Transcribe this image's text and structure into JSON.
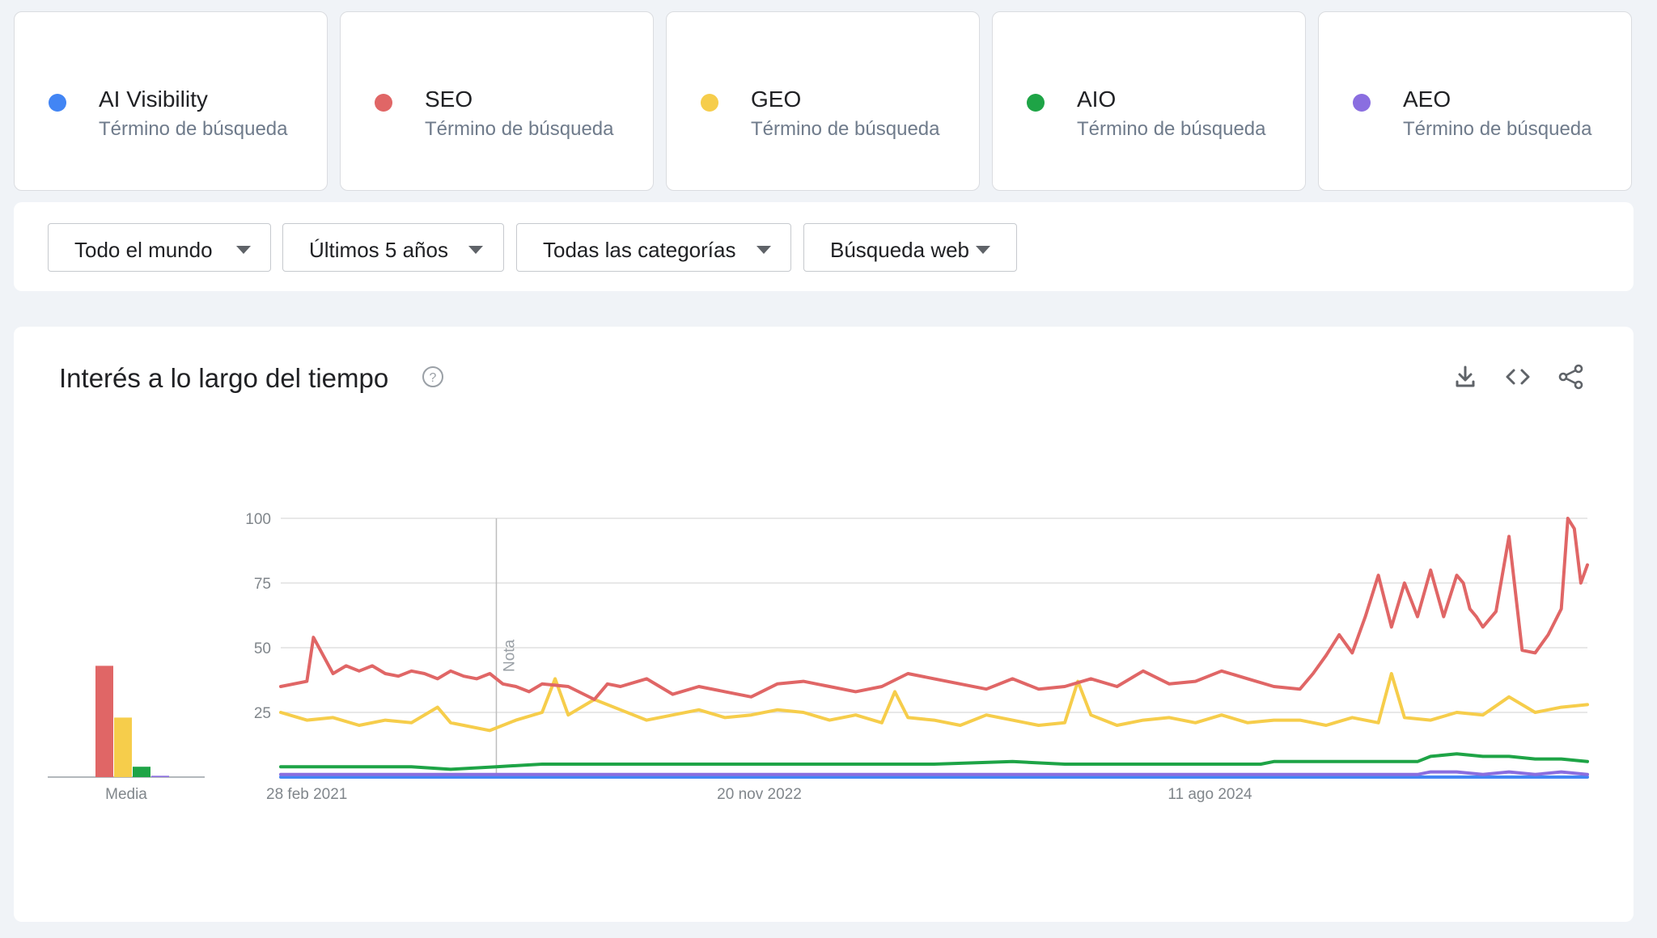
{
  "terms": [
    {
      "name": "AI Visibility",
      "type": "Término de búsqueda",
      "color": "#4285f4"
    },
    {
      "name": "SEO",
      "type": "Término de búsqueda",
      "color": "#e06666"
    },
    {
      "name": "GEO",
      "type": "Término de búsqueda",
      "color": "#f6cd4b"
    },
    {
      "name": "AIO",
      "type": "Término de búsqueda",
      "color": "#1ea446"
    },
    {
      "name": "AEO",
      "type": "Término de búsqueda",
      "color": "#8a6ee0"
    }
  ],
  "filters": {
    "region": "Todo el mundo",
    "period": "Últimos 5 años",
    "category": "Todas las categorías",
    "search_type": "Búsqueda web"
  },
  "panel": {
    "title": "Interés a lo largo del tiempo",
    "icons": [
      "help-icon",
      "download-icon",
      "embed-code-icon",
      "share-icon"
    ]
  },
  "chart_data": {
    "type": "line",
    "x_tick_labels": [
      "28 feb 2021",
      "20 nov 2022",
      "11 ago 2024"
    ],
    "y_ticks": [
      25,
      50,
      75,
      100
    ],
    "ylim": [
      0,
      100
    ],
    "grid": true,
    "annotation": "Nota",
    "annotation_x": 0.165,
    "average_label": "Media",
    "average": [
      {
        "term": "AI Visibility",
        "value": 0
      },
      {
        "term": "SEO",
        "value": 43
      },
      {
        "term": "GEO",
        "value": 23
      },
      {
        "term": "AIO",
        "value": 4
      },
      {
        "term": "AEO",
        "value": 0.5
      }
    ],
    "series": [
      {
        "name": "SEO",
        "color": "#e06666",
        "x": [
          0,
          0.02,
          0.025,
          0.04,
          0.05,
          0.06,
          0.07,
          0.08,
          0.09,
          0.1,
          0.11,
          0.12,
          0.13,
          0.14,
          0.15,
          0.16,
          0.17,
          0.18,
          0.19,
          0.2,
          0.22,
          0.24,
          0.25,
          0.26,
          0.28,
          0.3,
          0.32,
          0.34,
          0.36,
          0.38,
          0.4,
          0.42,
          0.44,
          0.46,
          0.48,
          0.5,
          0.52,
          0.54,
          0.56,
          0.58,
          0.6,
          0.62,
          0.64,
          0.66,
          0.68,
          0.7,
          0.72,
          0.74,
          0.76,
          0.78,
          0.79,
          0.8,
          0.81,
          0.82,
          0.83,
          0.84,
          0.85,
          0.86,
          0.87,
          0.88,
          0.89,
          0.9,
          0.905,
          0.91,
          0.915,
          0.92,
          0.93,
          0.94,
          0.95,
          0.96,
          0.97,
          0.975,
          0.98,
          0.985,
          0.99,
          0.995,
          1.0
        ],
        "values": [
          35,
          37,
          54,
          40,
          43,
          41,
          43,
          40,
          39,
          41,
          40,
          38,
          41,
          39,
          38,
          40,
          36,
          35,
          33,
          36,
          35,
          30,
          36,
          35,
          38,
          32,
          35,
          33,
          31,
          36,
          37,
          35,
          33,
          35,
          40,
          38,
          36,
          34,
          38,
          34,
          35,
          38,
          35,
          41,
          36,
          37,
          41,
          38,
          35,
          34,
          40,
          47,
          55,
          48,
          62,
          78,
          58,
          75,
          62,
          80,
          62,
          78,
          75,
          65,
          62,
          58,
          64,
          93,
          49,
          48,
          55,
          60,
          65,
          100,
          96,
          75,
          82
        ]
      },
      {
        "name": "GEO",
        "color": "#f6cd4b",
        "x": [
          0,
          0.02,
          0.04,
          0.06,
          0.08,
          0.1,
          0.12,
          0.13,
          0.14,
          0.16,
          0.18,
          0.2,
          0.21,
          0.22,
          0.24,
          0.26,
          0.28,
          0.3,
          0.32,
          0.34,
          0.36,
          0.38,
          0.4,
          0.42,
          0.44,
          0.46,
          0.47,
          0.48,
          0.5,
          0.52,
          0.54,
          0.56,
          0.58,
          0.6,
          0.61,
          0.62,
          0.64,
          0.66,
          0.68,
          0.7,
          0.72,
          0.74,
          0.76,
          0.78,
          0.8,
          0.82,
          0.84,
          0.85,
          0.86,
          0.88,
          0.9,
          0.92,
          0.94,
          0.96,
          0.98,
          1.0
        ],
        "values": [
          25,
          22,
          23,
          20,
          22,
          21,
          27,
          21,
          20,
          18,
          22,
          25,
          38,
          24,
          30,
          26,
          22,
          24,
          26,
          23,
          24,
          26,
          25,
          22,
          24,
          21,
          33,
          23,
          22,
          20,
          24,
          22,
          20,
          21,
          37,
          24,
          20,
          22,
          23,
          21,
          24,
          21,
          22,
          22,
          20,
          23,
          21,
          40,
          23,
          22,
          25,
          24,
          31,
          25,
          27,
          28
        ]
      },
      {
        "name": "AIO",
        "color": "#1ea446",
        "x": [
          0,
          0.1,
          0.13,
          0.165,
          0.2,
          0.3,
          0.4,
          0.5,
          0.56,
          0.6,
          0.7,
          0.75,
          0.76,
          0.8,
          0.82,
          0.85,
          0.87,
          0.88,
          0.9,
          0.92,
          0.94,
          0.96,
          0.98,
          1.0
        ],
        "values": [
          4,
          4,
          3,
          4,
          5,
          5,
          5,
          5,
          6,
          5,
          5,
          5,
          6,
          6,
          6,
          6,
          6,
          8,
          9,
          8,
          8,
          7,
          7,
          6
        ]
      },
      {
        "name": "AEO",
        "color": "#8a6ee0",
        "x": [
          0,
          0.87,
          0.88,
          0.9,
          0.92,
          0.94,
          0.96,
          0.98,
          1.0
        ],
        "values": [
          1,
          1,
          2,
          2,
          1,
          2,
          1,
          2,
          1
        ]
      },
      {
        "name": "AI Visibility",
        "color": "#4285f4",
        "x": [
          0,
          1.0
        ],
        "values": [
          0,
          0
        ]
      }
    ]
  }
}
